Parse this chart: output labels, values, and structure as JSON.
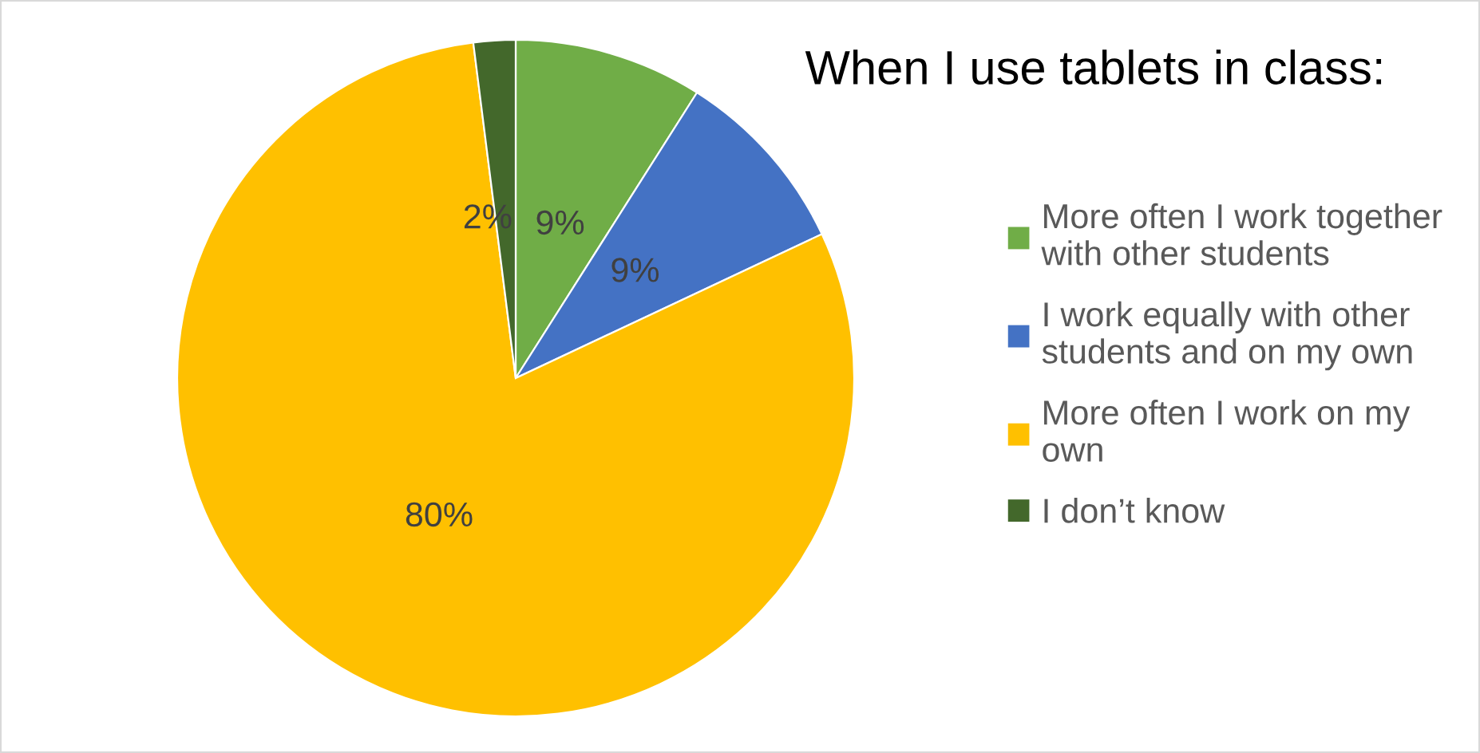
{
  "chart_data": {
    "type": "pie",
    "title": "When I use tablets in class:",
    "categories": [
      "More often I work together with other students",
      "I work equally with other students and on my own",
      "More often I work on my own",
      "I don’t know"
    ],
    "values": [
      9,
      9,
      80,
      2
    ],
    "colors": [
      "#70ad47",
      "#4472c4",
      "#ffc000",
      "#43682b"
    ],
    "value_labels": [
      "9%",
      "9%",
      "80%",
      "2%"
    ],
    "legend": "right"
  }
}
